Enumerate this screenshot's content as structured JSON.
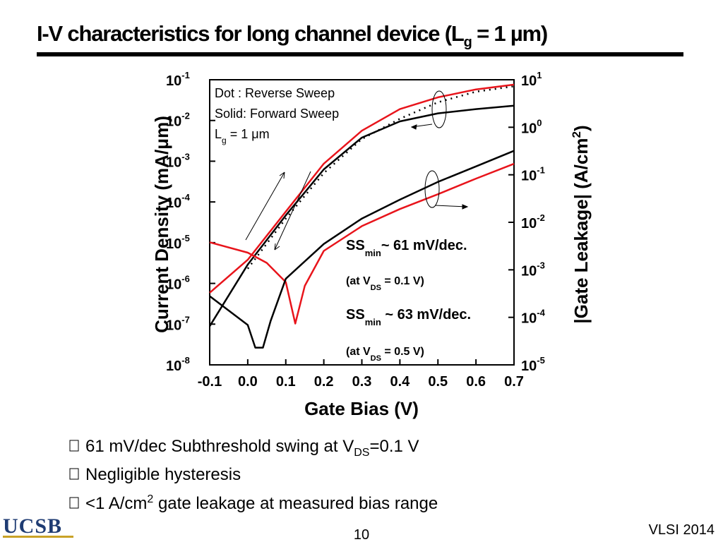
{
  "title": [
    "I-V characteristics for long channel device (L",
    "g",
    " = 1 µm)"
  ],
  "bullets": [
    [
      "61 mV/dec Subthreshold swing at V",
      "DS",
      "=0.1 V"
    ],
    [
      "Negligible hysteresis"
    ],
    [
      "<1 A/cm",
      "2",
      " gate leakage at measured bias range"
    ]
  ],
  "footer": {
    "logo": "UCSB",
    "page": "10",
    "venue": "VLSI 2014"
  },
  "chart_data": {
    "type": "line",
    "xlabel": "Gate Bias (V)",
    "ylabel": "Current Density (mA/μm)",
    "y2label": [
      "|Gate Leakage| (A/cm",
      "2",
      ")"
    ],
    "annotations": {
      "legend_box": [
        "Dot : Reverse Sweep",
        "Solid: Forward Sweep",
        [
          "L",
          "g",
          " = 1 μm"
        ]
      ],
      "ss": [
        [
          "SS",
          "min",
          "~  61 mV/dec."
        ],
        [
          "(at V",
          "DS",
          " = 0.1 V)"
        ],
        [
          "SS",
          "min",
          " ~ 63 mV/dec."
        ],
        [
          "(at V",
          "DS",
          " = 0.5 V)"
        ]
      ]
    },
    "xlim": [
      -0.1,
      0.7
    ],
    "xticks": [
      -0.1,
      {
        "value": 0,
        "label": "0.0"
      },
      0.1,
      0.2,
      0.3,
      0.4,
      0.5,
      0.6,
      0.7
    ],
    "ylim": [
      1e-08,
      0.1
    ],
    "ylog": true,
    "yticks": [
      {
        "value": 1e-08,
        "label": [
          "10",
          "-8"
        ]
      },
      {
        "value": 1e-07,
        "label": [
          "10",
          "-7"
        ]
      },
      {
        "value": 1e-06,
        "label": [
          "10",
          "-6"
        ]
      },
      {
        "value": 1e-05,
        "label": [
          "10",
          "-5"
        ]
      },
      {
        "value": 0.0001,
        "label": [
          "10",
          "-4"
        ]
      },
      {
        "value": 0.001,
        "label": [
          "10",
          "-3"
        ]
      },
      {
        "value": 0.01,
        "label": [
          "10",
          "-2"
        ]
      },
      {
        "value": 0.1,
        "label": [
          "10",
          "-1"
        ]
      }
    ],
    "y2lim": [
      1e-05,
      10
    ],
    "y2log": true,
    "y2ticks": [
      {
        "value": 1e-05,
        "label": [
          "10",
          "-5"
        ]
      },
      {
        "value": 0.0001,
        "label": [
          "10",
          "-4"
        ]
      },
      {
        "value": 0.001,
        "label": [
          "10",
          "-3"
        ]
      },
      {
        "value": 0.01,
        "label": [
          "10",
          "-2"
        ]
      },
      {
        "value": 0.1,
        "label": [
          "10",
          "-1"
        ]
      },
      {
        "value": 1,
        "label": [
          "10",
          "0"
        ]
      },
      {
        "value": 10,
        "label": [
          "10",
          "1"
        ]
      }
    ],
    "series": [
      {
        "color": "#e8141b",
        "dash": "solid",
        "x": [
          -0.1,
          0,
          0.1,
          0.2,
          0.3,
          0.4,
          0.5,
          0.6,
          0.7
        ],
        "values": [
          5.9e-07,
          3.8e-06,
          5.8e-05,
          0.00087,
          0.0056,
          0.019,
          0.037,
          0.058,
          0.076
        ]
      },
      {
        "color": "#000000",
        "dash": "solid",
        "x": [
          -0.1,
          0,
          0.1,
          0.2,
          0.3,
          0.4,
          0.5,
          0.6,
          0.7
        ],
        "values": [
          8.9e-08,
          2.9e-06,
          4.7e-05,
          0.00063,
          0.0038,
          0.0095,
          0.015,
          0.019,
          0.023
        ]
      },
      {
        "color": "#000000",
        "dash": "dotted",
        "x": [
          0,
          0.1,
          0.2,
          0.3,
          0.4,
          0.5,
          0.6,
          0.7
        ],
        "values": [
          2.3e-06,
          3.9e-05,
          0.00051,
          0.0035,
          0.011,
          0.028,
          0.051,
          0.069
        ]
      },
      {
        "color": "#e8141b",
        "dash": "solid",
        "axis": "y2",
        "x": [
          -0.1,
          0,
          0.05,
          0.1,
          0.125,
          0.15,
          0.2,
          0.3,
          0.4,
          0.5,
          0.6,
          0.7
        ],
        "values": [
          0.0038,
          0.0023,
          0.0014,
          0.00055,
          7.4e-05,
          0.00046,
          0.0025,
          0.0083,
          0.019,
          0.039,
          0.083,
          0.17
        ]
      },
      {
        "color": "#000000",
        "dash": "solid",
        "axis": "y2",
        "x": [
          -0.1,
          0,
          0.02,
          0.04,
          0.06,
          0.1,
          0.2,
          0.3,
          0.4,
          0.5,
          0.6,
          0.7
        ],
        "values": [
          0.00028,
          6.9e-05,
          2.3e-05,
          2.3e-05,
          8.3e-05,
          0.00065,
          0.0035,
          0.012,
          0.03,
          0.071,
          0.15,
          0.32
        ]
      }
    ]
  }
}
